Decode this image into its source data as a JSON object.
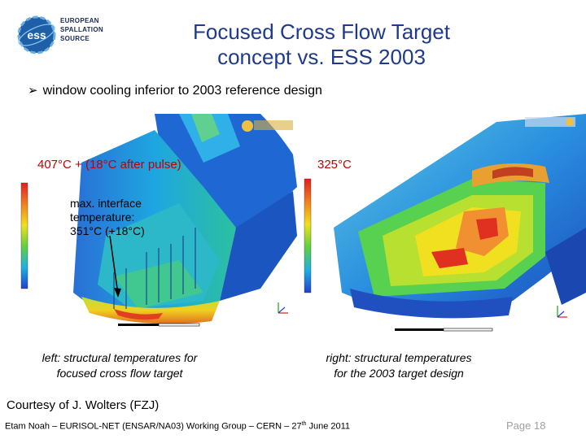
{
  "header": {
    "logo": {
      "icon": "ess-logo-icon",
      "mark": "ess",
      "lines": [
        "EUROPEAN",
        "SPALLATION",
        "SOURCE"
      ]
    },
    "title_line1": "Focused Cross Flow Target",
    "title_line2": "concept vs. ESS 2003"
  },
  "bullet": {
    "icon": "arrow-bullet-icon",
    "text": "window cooling inferior to 2003 reference design"
  },
  "left_panel": {
    "max_temp_label": "407°C  + (18°C after pulse)",
    "annotation_line1": "max. interface",
    "annotation_line2": "temperature:",
    "annotation_line3": "351°C (+18°C)",
    "caption_line1": "left: structural temperatures for",
    "caption_line2": "focused cross flow target"
  },
  "right_panel": {
    "max_temp_label": "325°C",
    "caption_line1": "right: structural temperatures",
    "caption_line2": "for the 2003 target design"
  },
  "courtesy": "Courtesy of J. Wolters (FZJ)",
  "footer": {
    "text_before": "Etam Noah – EURISOL-NET (ENSAR/NA03) Working Group – CERN – 27",
    "superscript": "th",
    "text_after": " June 2011"
  },
  "page_number": "Page 18",
  "colors": {
    "title": "#1f3a8a",
    "highlight": "#c00000",
    "footer_page": "#a0a0a0"
  }
}
